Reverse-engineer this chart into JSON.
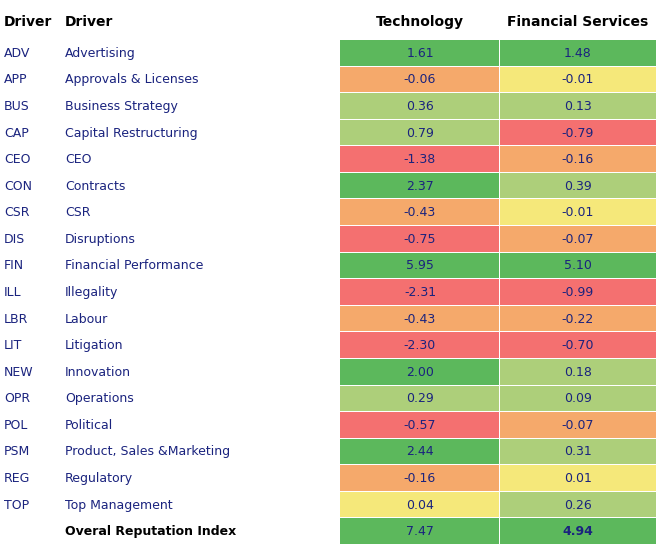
{
  "headers": [
    "Driver",
    "Driver",
    "Technology",
    "Financial Services"
  ],
  "rows": [
    {
      "abbr": "ADV",
      "name": "Advertising",
      "tech": 1.61,
      "fin": 1.48
    },
    {
      "abbr": "APP",
      "name": "Approvals & Licenses",
      "tech": -0.06,
      "fin": -0.01
    },
    {
      "abbr": "BUS",
      "name": "Business Strategy",
      "tech": 0.36,
      "fin": 0.13
    },
    {
      "abbr": "CAP",
      "name": "Capital Restructuring",
      "tech": 0.79,
      "fin": -0.79
    },
    {
      "abbr": "CEO",
      "name": "CEO",
      "tech": -1.38,
      "fin": -0.16
    },
    {
      "abbr": "CON",
      "name": "Contracts",
      "tech": 2.37,
      "fin": 0.39
    },
    {
      "abbr": "CSR",
      "name": "CSR",
      "tech": -0.43,
      "fin": -0.01
    },
    {
      "abbr": "DIS",
      "name": "Disruptions",
      "tech": -0.75,
      "fin": -0.07
    },
    {
      "abbr": "FIN",
      "name": "Financial Performance",
      "tech": 5.95,
      "fin": 5.1
    },
    {
      "abbr": "ILL",
      "name": "Illegality",
      "tech": -2.31,
      "fin": -0.99
    },
    {
      "abbr": "LBR",
      "name": "Labour",
      "tech": -0.43,
      "fin": -0.22
    },
    {
      "abbr": "LIT",
      "name": "Litigation",
      "tech": -2.3,
      "fin": -0.7
    },
    {
      "abbr": "NEW",
      "name": "Innovation",
      "tech": 2.0,
      "fin": 0.18
    },
    {
      "abbr": "OPR",
      "name": "Operations",
      "tech": 0.29,
      "fin": 0.09
    },
    {
      "abbr": "POL",
      "name": "Political",
      "tech": -0.57,
      "fin": -0.07
    },
    {
      "abbr": "PSM",
      "name": "Product, Sales &Marketing",
      "tech": 2.44,
      "fin": 0.31
    },
    {
      "abbr": "REG",
      "name": "Regulatory",
      "tech": -0.16,
      "fin": 0.01
    },
    {
      "abbr": "TOP",
      "name": "Top Management",
      "tech": 0.04,
      "fin": 0.26
    }
  ],
  "footer": {
    "abbr": "",
    "name": "Overal Reputation Index",
    "tech": 7.47,
    "fin": 4.94
  },
  "colors": {
    "strong_green": "#5CB85C",
    "light_green": "#ADCF7A",
    "yellow": "#F5E87A",
    "light_orange": "#F5A96B",
    "red": "#F47070",
    "footer_green": "#5CB85C",
    "text_dark": "#1A237E",
    "text_black": "#000000"
  },
  "figsize": [
    6.58,
    5.45
  ],
  "dpi": 100
}
